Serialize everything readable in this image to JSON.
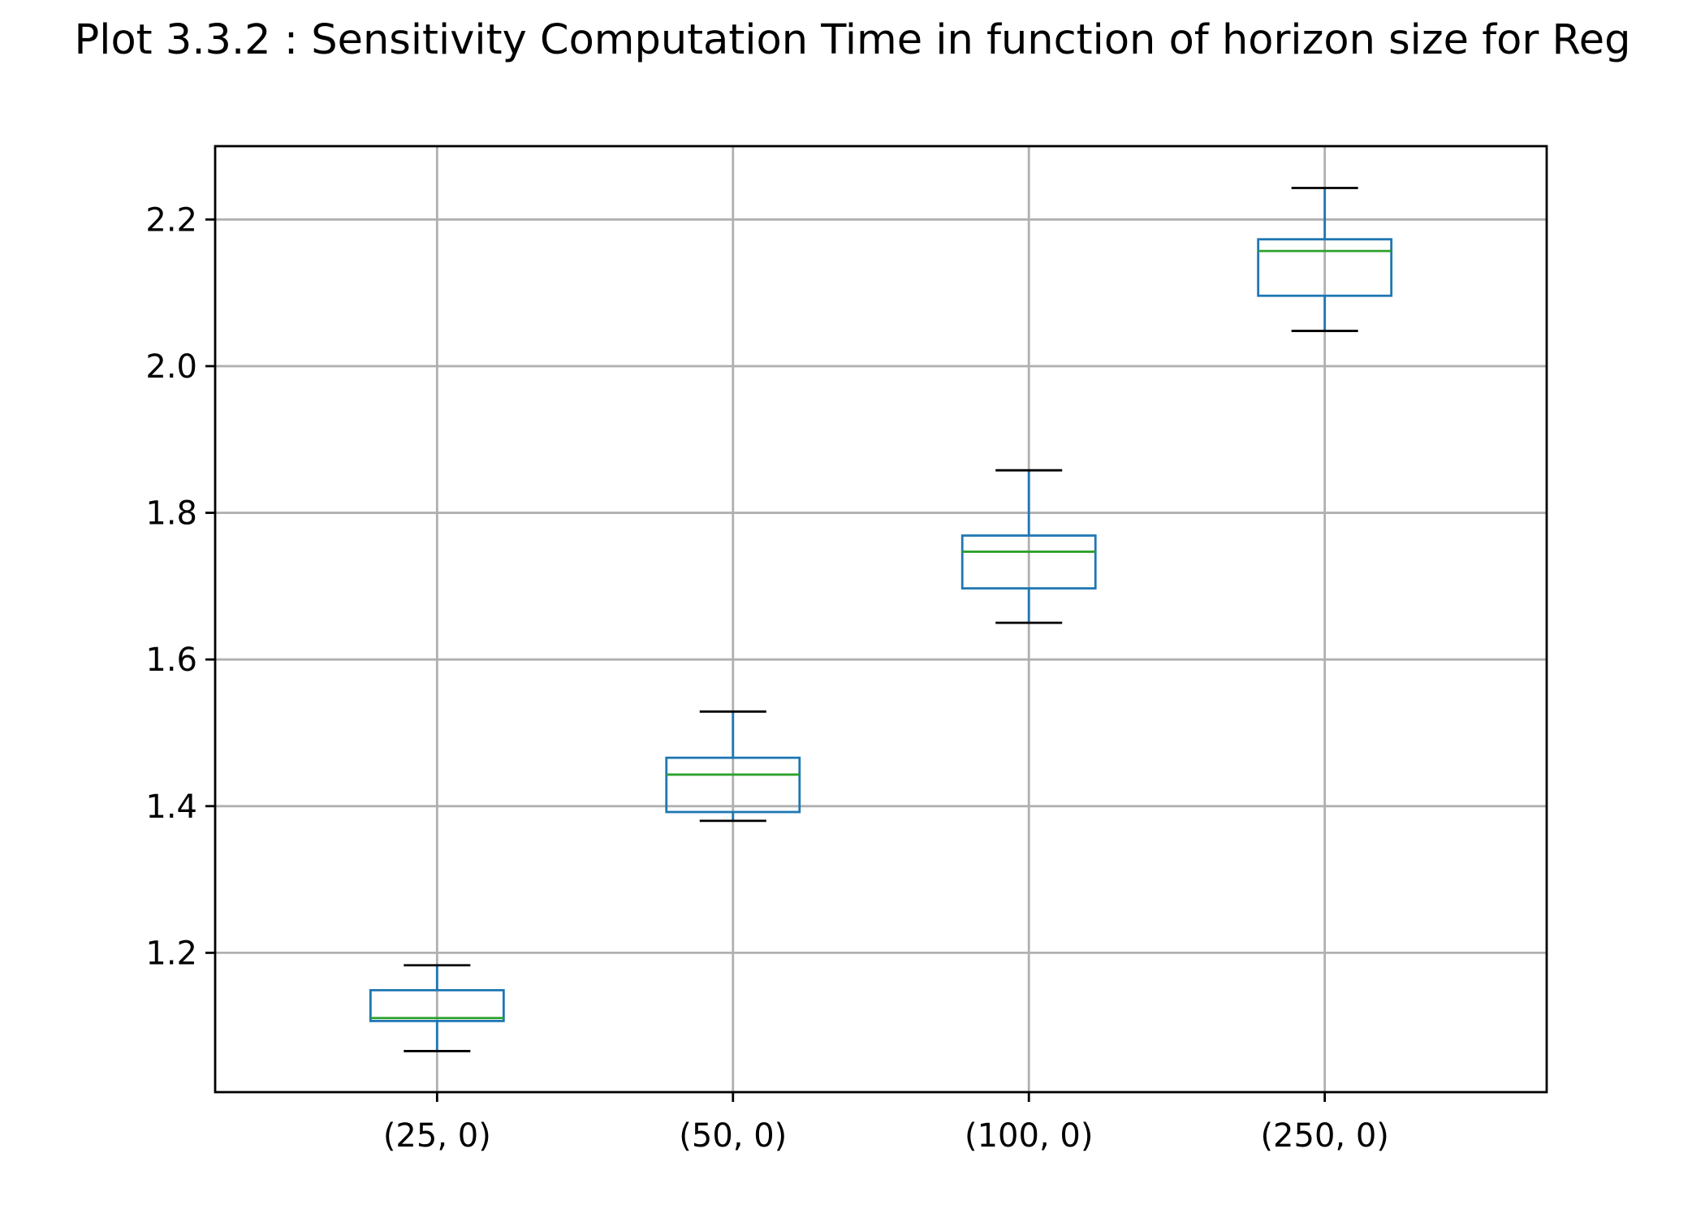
{
  "chart_data": {
    "type": "box",
    "title": "Plot 3.3.2 : Sensitivity Computation Time in function of horizon size for Reg",
    "xlabel": "",
    "ylabel": "",
    "categories": [
      "(25, 0)",
      "(50, 0)",
      "(100, 0)",
      "(250, 0)"
    ],
    "boxes": [
      {
        "category": "(25, 0)",
        "whisker_low": 1.066,
        "q1": 1.107,
        "median": 1.111,
        "q3": 1.149,
        "whisker_high": 1.183
      },
      {
        "category": "(50, 0)",
        "whisker_low": 1.38,
        "q1": 1.392,
        "median": 1.443,
        "q3": 1.466,
        "whisker_high": 1.529
      },
      {
        "category": "(100, 0)",
        "whisker_low": 1.65,
        "q1": 1.697,
        "median": 1.747,
        "q3": 1.769,
        "whisker_high": 1.858
      },
      {
        "category": "(250, 0)",
        "whisker_low": 2.048,
        "q1": 2.096,
        "median": 2.157,
        "q3": 2.173,
        "whisker_high": 2.243
      }
    ],
    "yticks": [
      "1.2",
      "1.4",
      "1.6",
      "1.8",
      "2.0",
      "2.2"
    ],
    "ylim": [
      1.01,
      2.3
    ],
    "grid": true,
    "colors": {
      "box": "#1f77b4",
      "median": "#2ca02c",
      "cap": "#000000",
      "grid": "#b0b0b0"
    }
  }
}
